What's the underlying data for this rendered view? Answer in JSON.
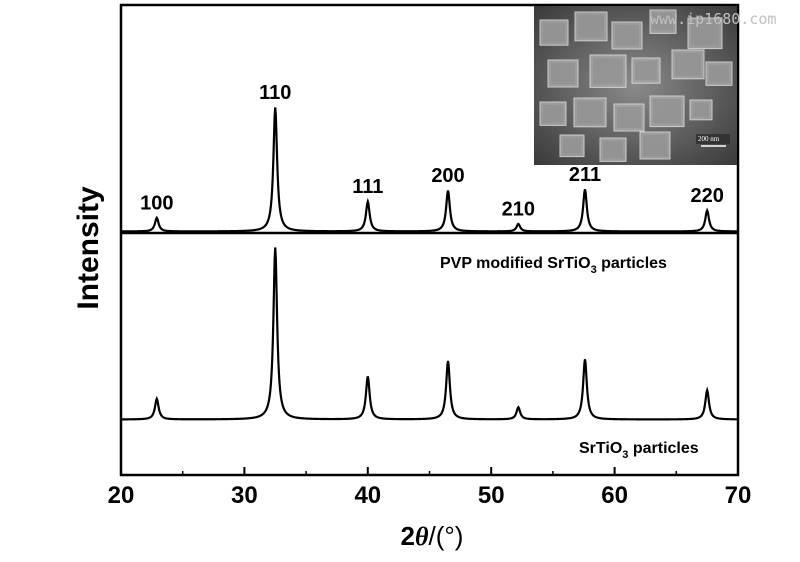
{
  "chart_data": {
    "type": "line",
    "xlabel_main": "2",
    "xlabel_theta": "θ",
    "xlabel_unit": "/(°)",
    "ylabel": "Intensity",
    "xlim": [
      20,
      70
    ],
    "xticks": [
      20,
      30,
      40,
      50,
      60,
      70
    ],
    "grid": false,
    "y_ticks_shown": false,
    "peaks": [
      {
        "hkl": "100",
        "two_theta": 22.9
      },
      {
        "hkl": "110",
        "two_theta": 32.5
      },
      {
        "hkl": "111",
        "two_theta": 40.0
      },
      {
        "hkl": "200",
        "two_theta": 46.5
      },
      {
        "hkl": "210",
        "two_theta": 52.2
      },
      {
        "hkl": "211",
        "two_theta": 57.6
      },
      {
        "hkl": "220",
        "two_theta": 67.5
      }
    ],
    "series": [
      {
        "name_main": "PVP modified SrTiO",
        "name_sub": "3",
        "name_rest": " particles",
        "relative_intensity": [
          0.11,
          1.0,
          0.24,
          0.33,
          0.06,
          0.34,
          0.17
        ]
      },
      {
        "name_main": "SrTiO",
        "name_sub": "3",
        "name_rest": " particles",
        "relative_intensity": [
          0.12,
          1.0,
          0.25,
          0.34,
          0.07,
          0.35,
          0.17
        ]
      }
    ]
  },
  "inset": {
    "description_icon": "sem-micrograph-icon",
    "scale_text": "200 nm"
  },
  "watermark": "www.ip1680.com",
  "colors": {
    "line": "#000000",
    "inset_bg": "#5a5a5a",
    "watermark": "#c0c0c0"
  }
}
